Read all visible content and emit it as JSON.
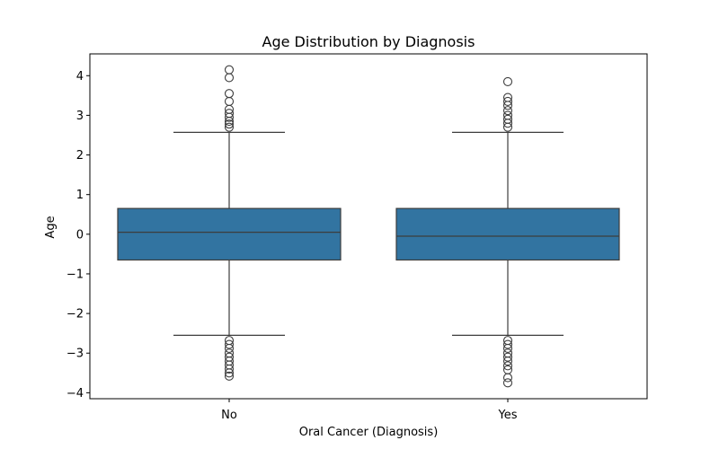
{
  "chart_data": {
    "type": "box",
    "title": "Age Distribution by Diagnosis",
    "xlabel": "Oral Cancer (Diagnosis)",
    "ylabel": "Age",
    "categories": [
      "No",
      "Yes"
    ],
    "ylim": [
      -4.15,
      4.55
    ],
    "yticks": [
      4,
      3,
      2,
      1,
      0,
      -1,
      -2,
      -3,
      -4
    ],
    "ytick_labels": [
      "4",
      "3",
      "2",
      "1",
      "0",
      "−1",
      "−2",
      "−3",
      "−4"
    ],
    "box_color": "#3274a1",
    "line_color": "#3d3d3d",
    "boxes": [
      {
        "category": "No",
        "whisker_low": -2.55,
        "q1": -0.65,
        "median": 0.05,
        "q3": 0.65,
        "whisker_high": 2.57,
        "outliers": [
          4.15,
          3.95,
          3.55,
          3.35,
          3.15,
          3.05,
          2.95,
          2.85,
          2.78,
          2.7,
          -2.68,
          -2.78,
          -2.88,
          -3.0,
          -3.1,
          -3.2,
          -3.3,
          -3.4,
          -3.5,
          -3.58
        ]
      },
      {
        "category": "Yes",
        "whisker_low": -2.55,
        "q1": -0.65,
        "median": -0.05,
        "q3": 0.65,
        "whisker_high": 2.57,
        "outliers": [
          3.85,
          3.45,
          3.35,
          3.25,
          3.12,
          3.0,
          2.9,
          2.8,
          2.7,
          -2.68,
          -2.78,
          -2.88,
          -3.0,
          -3.1,
          -3.2,
          -3.32,
          -3.42,
          -3.62,
          -3.75
        ]
      }
    ]
  }
}
